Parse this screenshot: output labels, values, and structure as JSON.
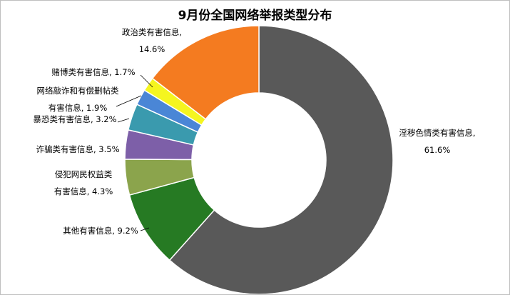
{
  "chart_data": {
    "type": "pie",
    "variant": "donut",
    "title": "9月份全国网络举报类型分布",
    "slices": [
      {
        "label_lines": [
          "淫秽色情类有害信息,",
          "61.6%"
        ],
        "value": 61.6,
        "color": "#595959"
      },
      {
        "label_lines": [
          "其他有害信息, 9.2%"
        ],
        "value": 9.2,
        "color": "#267A23"
      },
      {
        "label_lines": [
          "侵犯网民权益类",
          "有害信息, 4.3%"
        ],
        "value": 4.3,
        "color": "#8BA44C"
      },
      {
        "label_lines": [
          "诈骗类有害信息, 3.5%"
        ],
        "value": 3.5,
        "color": "#7D5FA8"
      },
      {
        "label_lines": [
          "暴恐类有害信息, 3.2%"
        ],
        "value": 3.2,
        "color": "#3A9AAE"
      },
      {
        "label_lines": [
          "网络敲诈和有偿删帖类",
          "有害信息, 1.9%"
        ],
        "value": 1.9,
        "color": "#4A86D6"
      },
      {
        "label_lines": [
          "赌博类有害信息, 1.7%"
        ],
        "value": 1.7,
        "color": "#F5F51F"
      },
      {
        "label_lines": [
          "政治类有害信息,",
          "14.6%"
        ],
        "value": 14.6,
        "color": "#F47B20"
      }
    ]
  }
}
